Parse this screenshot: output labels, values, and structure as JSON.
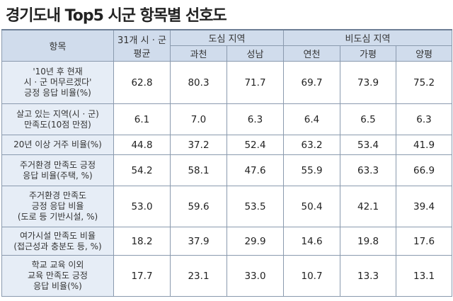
{
  "title": "경기도내 Top5 시군 항목별 선호도",
  "header": {
    "item_label": "항목",
    "avg_label_1": "31개 시 · 군",
    "avg_label_2": "평균",
    "urban_group": "도심 지역",
    "nonurban_group": "비도심 지역",
    "cities": [
      "과천",
      "성남",
      "연천",
      "가평",
      "양평"
    ]
  },
  "rows": [
    {
      "label": [
        "'10년 후 현재",
        "시 · 군 머무르겠다'",
        "긍정 응답 비율(%)"
      ],
      "values": [
        "62.8",
        "80.3",
        "71.7",
        "69.7",
        "73.9",
        "75.2"
      ]
    },
    {
      "label": [
        "살고 있는 지역(시 · 군)",
        "만족도(10점 만점)"
      ],
      "values": [
        "6.1",
        "7.0",
        "6.3",
        "6.4",
        "6.5",
        "6.3"
      ]
    },
    {
      "label": [
        "20년 이상 거주 비율(%)"
      ],
      "values": [
        "44.8",
        "37.2",
        "52.4",
        "63.2",
        "53.4",
        "41.9"
      ]
    },
    {
      "label": [
        "주거환경 만족도 긍정",
        "응답 비율(주택, %)"
      ],
      "values": [
        "54.2",
        "58.1",
        "47.6",
        "55.9",
        "63.3",
        "66.9"
      ]
    },
    {
      "label": [
        "주거환경 만족도",
        "긍정 응답 비율",
        "(도로 등 기반시설, %)"
      ],
      "values": [
        "53.0",
        "59.6",
        "53.5",
        "50.4",
        "42.1",
        "39.4"
      ]
    },
    {
      "label": [
        "여가시설 만족도 비율",
        "(접근성과 충분도 등, %)"
      ],
      "values": [
        "18.2",
        "37.9",
        "29.9",
        "14.6",
        "19.8",
        "17.6"
      ]
    },
    {
      "label": [
        "학교 교육 이외",
        "교육 만족도 긍정",
        "응답 비율(%)"
      ],
      "values": [
        "17.7",
        "23.1",
        "33.0",
        "10.7",
        "13.3",
        "13.1"
      ]
    }
  ]
}
